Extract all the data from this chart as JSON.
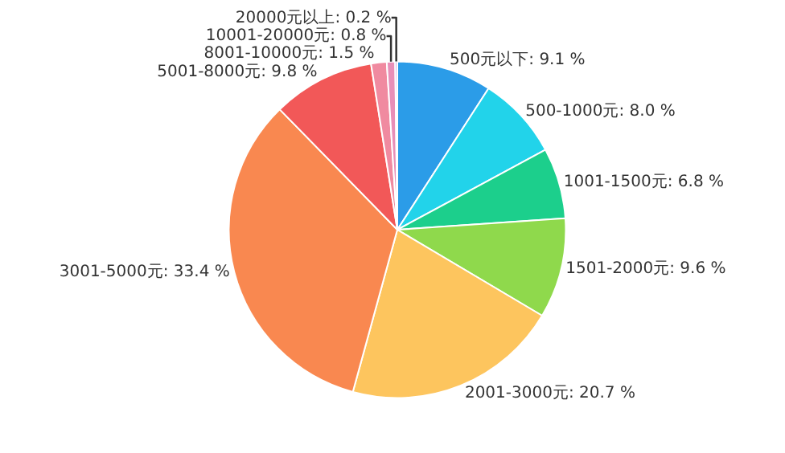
{
  "chart_data": {
    "type": "pie",
    "categories": [
      "500元以下",
      "500-1000元",
      "1001-1500元",
      "1501-2000元",
      "2001-3000元",
      "3001-5000元",
      "5001-8000元",
      "8001-10000元",
      "10001-20000元",
      "20000元以上"
    ],
    "values": [
      9.1,
      8.0,
      6.8,
      9.6,
      20.7,
      33.4,
      9.8,
      1.5,
      0.8,
      0.2
    ],
    "value_labels": [
      "9.1 %",
      "8.0 %",
      "6.8 %",
      "9.6 %",
      "20.7 %",
      "33.4 %",
      "9.8 %",
      "1.5 %",
      "0.8 %",
      "0.2 %"
    ],
    "colors": [
      "#2b9ce8",
      "#22d3ea",
      "#1ccf8c",
      "#8fd94c",
      "#fdc55e",
      "#f98850",
      "#f25858",
      "#f08aa0",
      "#e88fb8",
      "#b07cd8"
    ],
    "legend": false
  }
}
